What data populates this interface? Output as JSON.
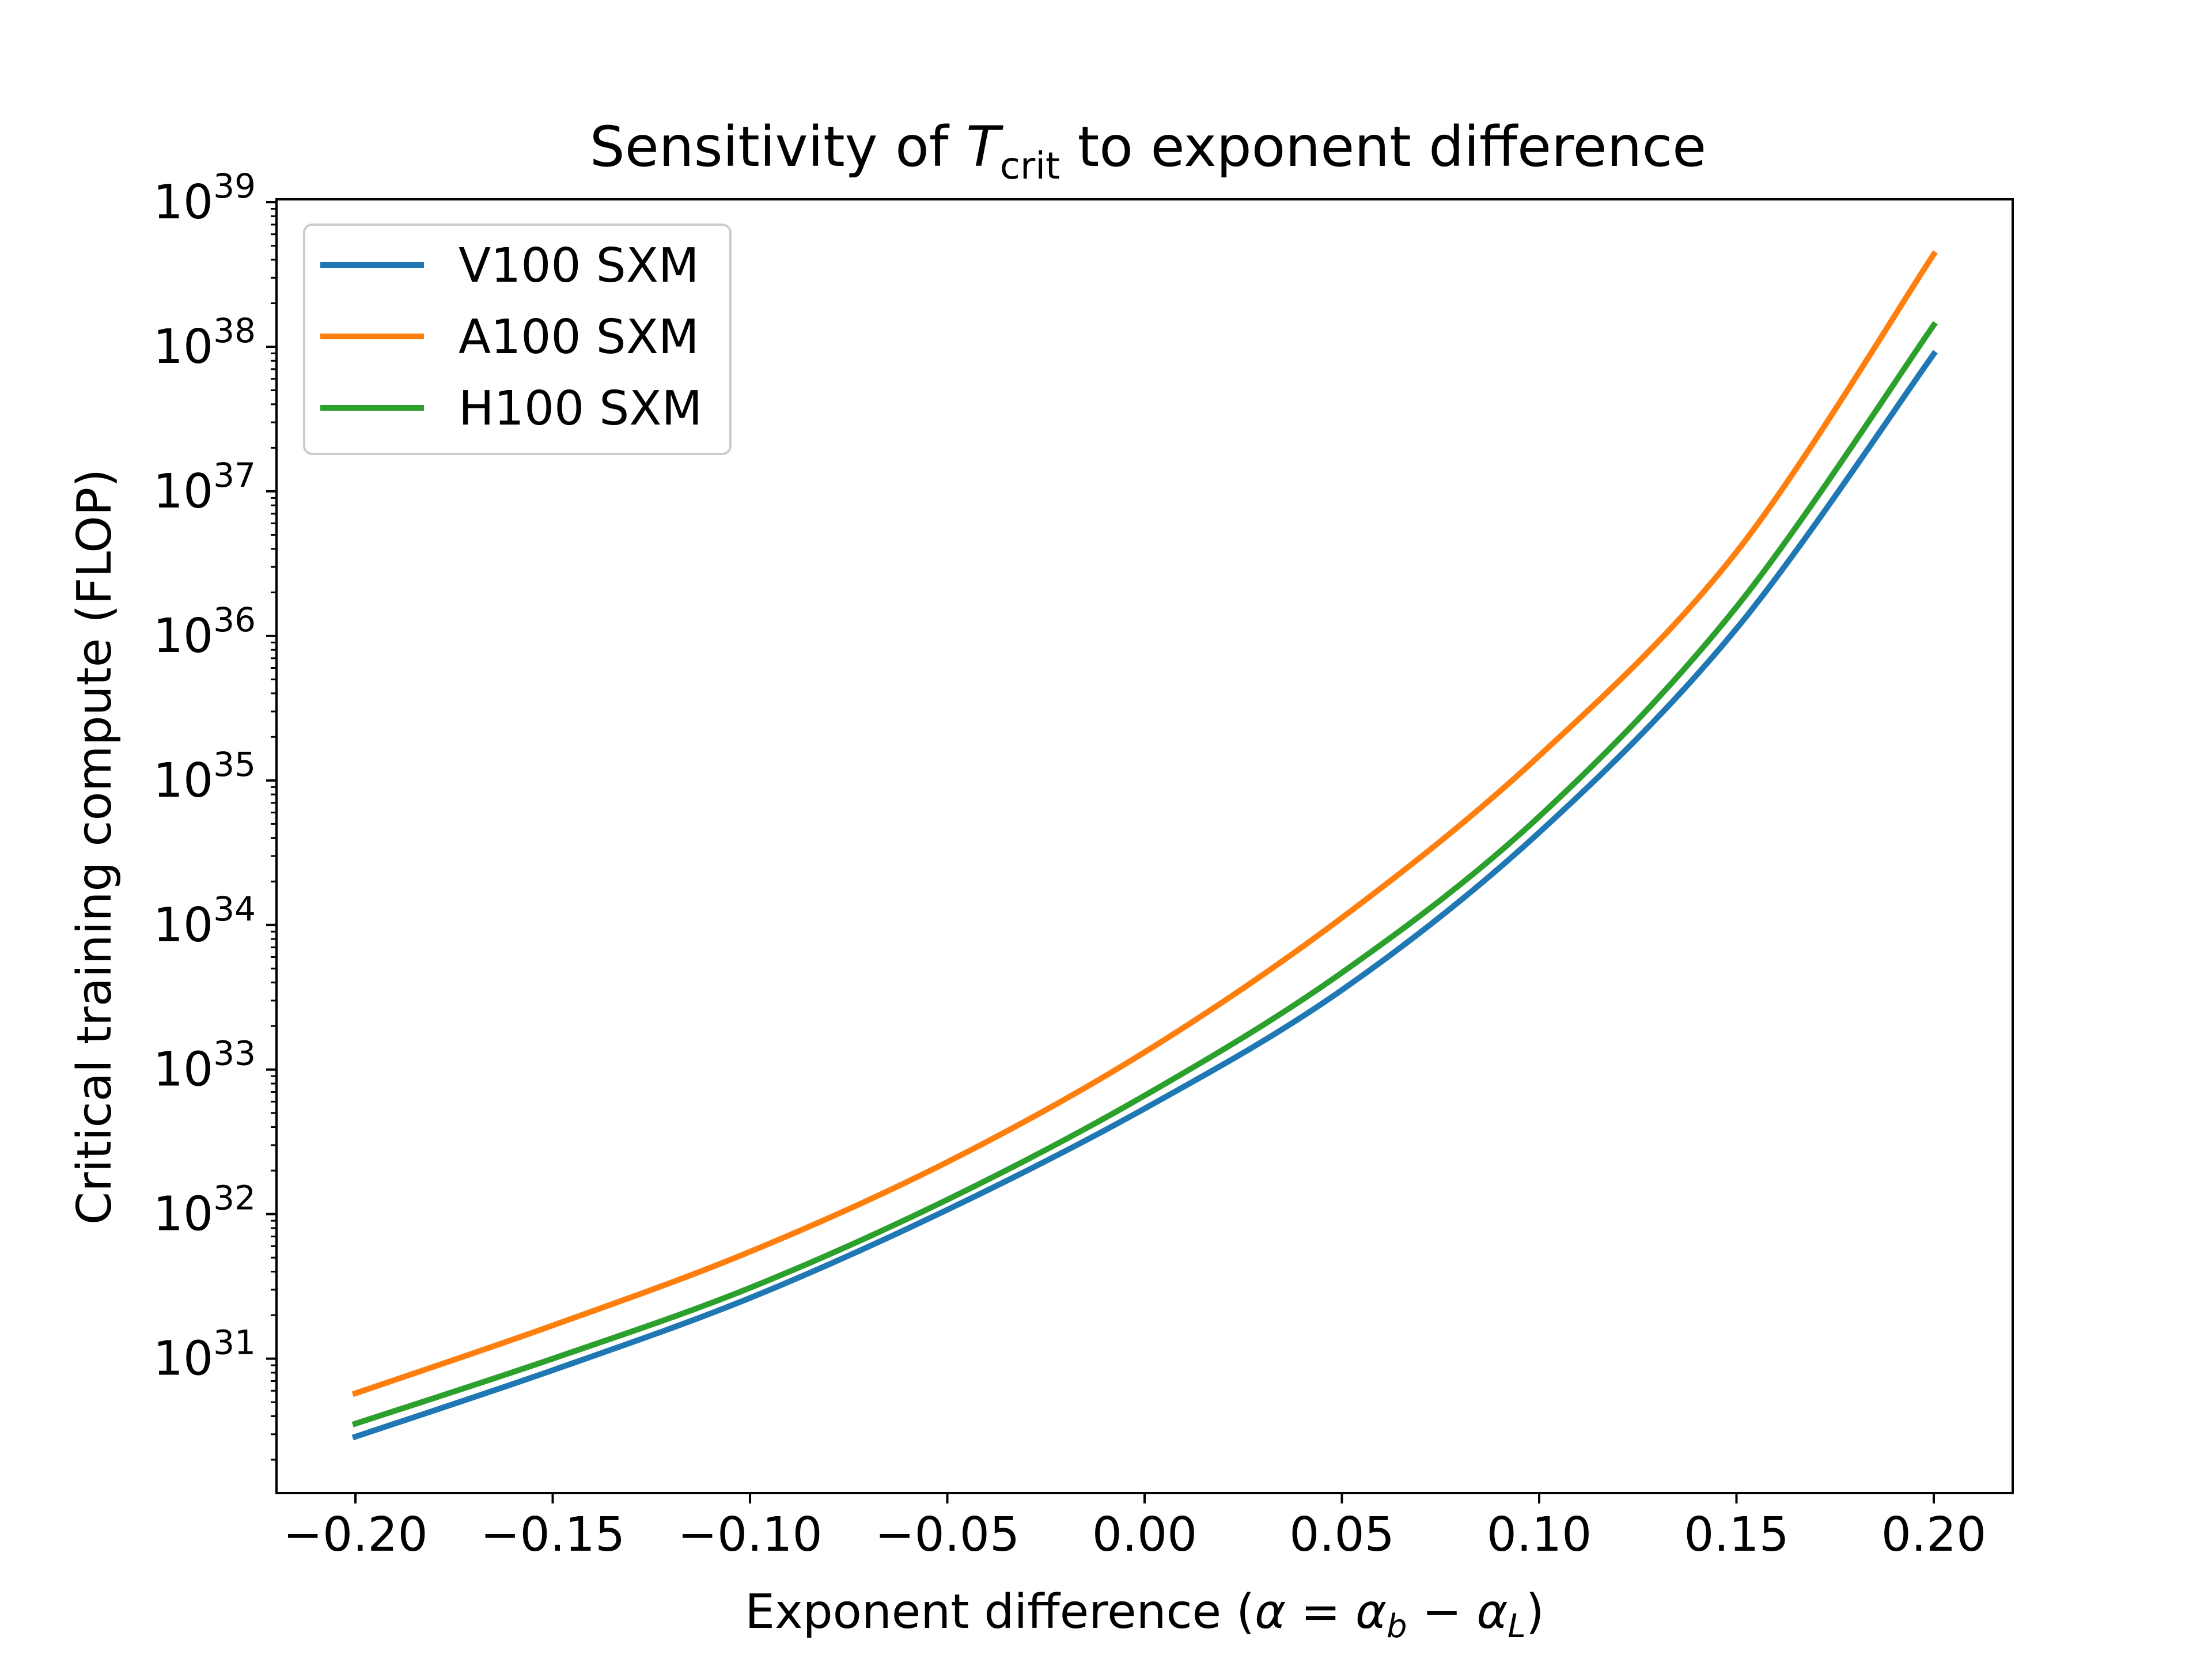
{
  "chart_data": {
    "type": "line",
    "title_prefix": "Sensitivity of ",
    "title_symbol": "T",
    "title_subscript": "crit",
    "title_suffix": " to exponent difference",
    "xlabel_prefix": "Exponent difference (",
    "xlabel_math": "α = α",
    "xlabel_sub_b": "b",
    "xlabel_minus": " − α",
    "xlabel_sub_L": "L",
    "xlabel_suffix": ")",
    "ylabel": "Critical training compute (FLOP)",
    "xlim": [
      -0.22,
      0.22
    ],
    "ylim_log10": [
      30.07,
      39.02
    ],
    "y_scale": "log",
    "x_ticks": [
      -0.2,
      -0.15,
      -0.1,
      -0.05,
      0.0,
      0.05,
      0.1,
      0.15,
      0.2
    ],
    "x_tick_labels": [
      "−0.20",
      "−0.15",
      "−0.10",
      "−0.05",
      "0.00",
      "0.05",
      "0.10",
      "0.15",
      "0.20"
    ],
    "y_tick_exponents": [
      31,
      32,
      33,
      34,
      35,
      36,
      37,
      38,
      39
    ],
    "y_tick_base": "10",
    "y_tick_labels": [
      "31",
      "32",
      "33",
      "34",
      "35",
      "36",
      "37",
      "38",
      "39"
    ],
    "grid": false,
    "legend_position": "upper-left",
    "x": [
      -0.2,
      -0.15,
      -0.1,
      -0.05,
      0.0,
      0.05,
      0.1,
      0.15,
      0.2
    ],
    "series": [
      {
        "name": "V100 SXM",
        "color": "#1f77b4",
        "log10_values": [
          30.46,
          30.92,
          31.42,
          32.03,
          32.73,
          33.55,
          34.64,
          36.05,
          37.95
        ]
      },
      {
        "name": "A100 SXM",
        "color": "#ff7f0e",
        "log10_values": [
          30.76,
          31.23,
          31.74,
          32.36,
          33.12,
          34.05,
          35.17,
          36.58,
          38.64
        ]
      },
      {
        "name": "H100 SXM",
        "color": "#2ca02c",
        "log10_values": [
          30.55,
          31.0,
          31.49,
          32.1,
          32.82,
          33.67,
          34.75,
          36.2,
          38.15
        ]
      }
    ]
  }
}
